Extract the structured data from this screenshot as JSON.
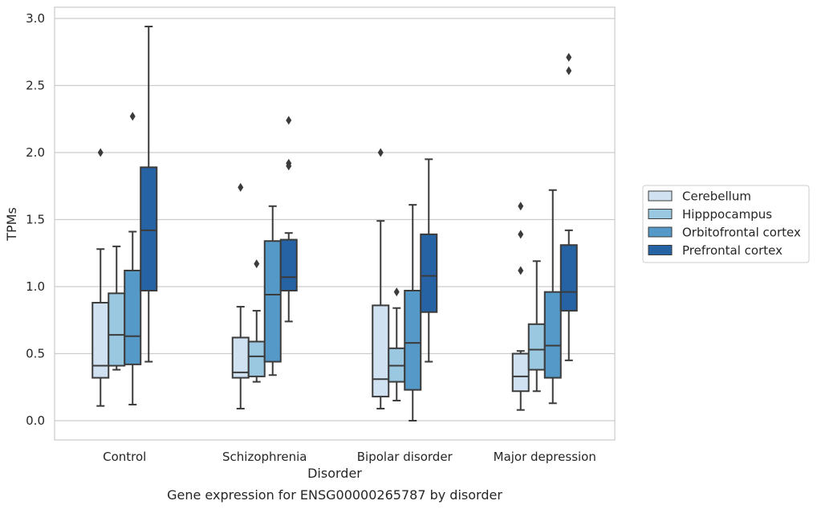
{
  "chart_data": {
    "type": "box",
    "caption": "Gene expression for ENSG00000265787 by disorder",
    "xlabel": "Disorder",
    "ylabel": "TPMs",
    "ylim": [
      -0.14,
      3.08
    ],
    "yticks": [
      "0.0",
      "0.5",
      "1.0",
      "1.5",
      "2.0",
      "2.5",
      "3.0"
    ],
    "grid": "horizontal",
    "legend_position": "right",
    "categories": [
      "Control",
      "Schizophrenia",
      "Bipolar disorder",
      "Major depression"
    ],
    "series": [
      {
        "name": "Cerebellum",
        "color": "#d0e1f2",
        "boxes": [
          {
            "whisker_low": 0.11,
            "q1": 0.32,
            "median": 0.41,
            "q3": 0.88,
            "whisker_high": 1.28,
            "outliers": [
              2.0
            ]
          },
          {
            "whisker_low": 0.09,
            "q1": 0.32,
            "median": 0.36,
            "q3": 0.62,
            "whisker_high": 0.85,
            "outliers": [
              1.74
            ]
          },
          {
            "whisker_low": 0.09,
            "q1": 0.18,
            "median": 0.31,
            "q3": 0.86,
            "whisker_high": 1.49,
            "outliers": [
              2.0
            ]
          },
          {
            "whisker_low": 0.08,
            "q1": 0.22,
            "median": 0.33,
            "q3": 0.5,
            "whisker_high": 0.52,
            "outliers": [
              1.12,
              1.39,
              1.6
            ]
          }
        ]
      },
      {
        "name": "Hipppocampus",
        "color": "#9ac8e0",
        "boxes": [
          {
            "whisker_low": 0.38,
            "q1": 0.41,
            "median": 0.64,
            "q3": 0.95,
            "whisker_high": 1.3,
            "outliers": []
          },
          {
            "whisker_low": 0.29,
            "q1": 0.33,
            "median": 0.48,
            "q3": 0.59,
            "whisker_high": 0.82,
            "outliers": [
              1.17
            ]
          },
          {
            "whisker_low": 0.15,
            "q1": 0.29,
            "median": 0.41,
            "q3": 0.54,
            "whisker_high": 0.84,
            "outliers": [
              0.96
            ]
          },
          {
            "whisker_low": 0.22,
            "q1": 0.38,
            "median": 0.53,
            "q3": 0.72,
            "whisker_high": 1.19,
            "outliers": []
          }
        ]
      },
      {
        "name": "Orbitofrontal cortex",
        "color": "#5499c7",
        "boxes": [
          {
            "whisker_low": 0.12,
            "q1": 0.42,
            "median": 0.63,
            "q3": 1.12,
            "whisker_high": 1.41,
            "outliers": [
              2.27
            ]
          },
          {
            "whisker_low": 0.34,
            "q1": 0.44,
            "median": 0.94,
            "q3": 1.34,
            "whisker_high": 1.6,
            "outliers": []
          },
          {
            "whisker_low": 0.0,
            "q1": 0.23,
            "median": 0.58,
            "q3": 0.97,
            "whisker_high": 1.61,
            "outliers": []
          },
          {
            "whisker_low": 0.13,
            "q1": 0.32,
            "median": 0.56,
            "q3": 0.96,
            "whisker_high": 1.72,
            "outliers": []
          }
        ]
      },
      {
        "name": "Prefrontal cortex",
        "color": "#2563a5",
        "boxes": [
          {
            "whisker_low": 0.44,
            "q1": 0.97,
            "median": 1.42,
            "q3": 1.89,
            "whisker_high": 2.94,
            "outliers": []
          },
          {
            "whisker_low": 0.74,
            "q1": 0.97,
            "median": 1.07,
            "q3": 1.35,
            "whisker_high": 1.4,
            "outliers": [
              1.9,
              1.92,
              2.24
            ]
          },
          {
            "whisker_low": 0.44,
            "q1": 0.81,
            "median": 1.08,
            "q3": 1.39,
            "whisker_high": 1.95,
            "outliers": []
          },
          {
            "whisker_low": 0.45,
            "q1": 0.82,
            "median": 0.96,
            "q3": 1.31,
            "whisker_high": 1.42,
            "outliers": [
              2.61,
              2.71
            ]
          }
        ]
      }
    ]
  }
}
